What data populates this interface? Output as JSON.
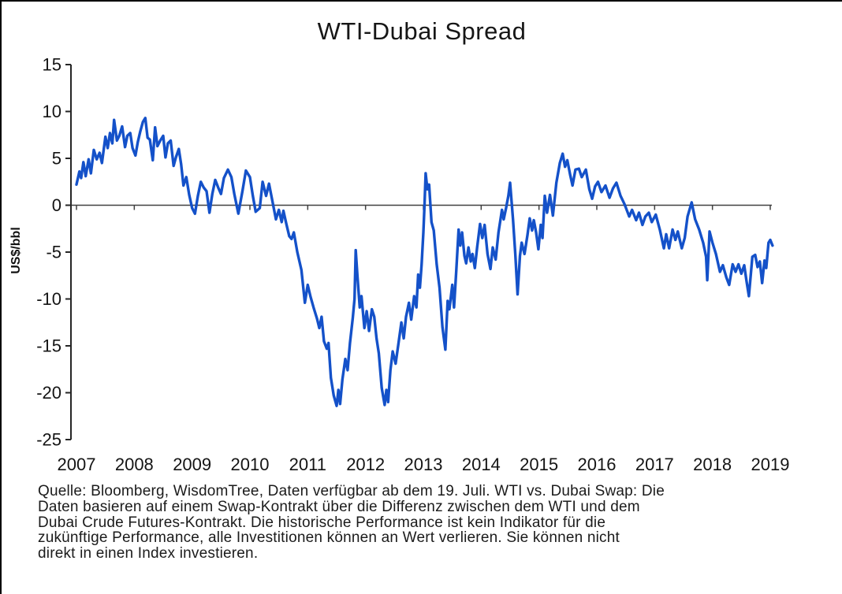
{
  "title": "WTI-Dubai Spread",
  "y_axis_label": "US$/bbl",
  "footnote_lines": [
    "Quelle: Bloomberg, WisdomTree, Daten verfügbar ab dem 19. Juli. WTI vs. Dubai Swap: Die",
    "Daten basieren auf einem Swap-Kontrakt über die Differenz zwischen dem WTI und dem",
    "Dubai Crude Futures-Kontrakt.  Die historische Performance ist kein Indikator für die",
    "zukünftige Performance, alle Investitionen können an Wert verlieren. Sie können nicht",
    "direkt in einen Index investieren."
  ],
  "chart_data": {
    "type": "line",
    "title": "WTI-Dubai Spread",
    "xlabel": "",
    "ylabel": "US$/bbl",
    "ylim": [
      -25,
      15
    ],
    "xlim": [
      2007,
      2019.1
    ],
    "grid": false,
    "legend": "none",
    "line_color": "#1451C9",
    "axis_color": "#404040",
    "y_ticks": [
      15,
      10,
      5,
      0,
      -5,
      -10,
      -15,
      -20,
      -25
    ],
    "x_ticks": [
      "2007",
      "2008",
      "2009",
      "2010",
      "2011",
      "2012",
      "2013",
      "2014",
      "2015",
      "2016",
      "2017",
      "2018",
      "2019"
    ],
    "series": [
      {
        "name": "WTI-Dubai Spread (US$/bbl)",
        "points": [
          [
            2007.0,
            2.2
          ],
          [
            2007.05,
            3.6
          ],
          [
            2007.08,
            2.9
          ],
          [
            2007.12,
            4.6
          ],
          [
            2007.16,
            3.1
          ],
          [
            2007.21,
            4.9
          ],
          [
            2007.25,
            3.4
          ],
          [
            2007.3,
            5.9
          ],
          [
            2007.35,
            4.9
          ],
          [
            2007.4,
            5.6
          ],
          [
            2007.44,
            4.5
          ],
          [
            2007.5,
            7.3
          ],
          [
            2007.54,
            6.1
          ],
          [
            2007.58,
            7.7
          ],
          [
            2007.62,
            6.6
          ],
          [
            2007.65,
            9.1
          ],
          [
            2007.7,
            6.9
          ],
          [
            2007.74,
            7.4
          ],
          [
            2007.79,
            8.4
          ],
          [
            2007.84,
            6.2
          ],
          [
            2007.88,
            7.4
          ],
          [
            2007.93,
            7.7
          ],
          [
            2007.97,
            6.1
          ],
          [
            2008.02,
            5.3
          ],
          [
            2008.06,
            6.7
          ],
          [
            2008.1,
            7.8
          ],
          [
            2008.15,
            8.9
          ],
          [
            2008.19,
            9.3
          ],
          [
            2008.23,
            7.2
          ],
          [
            2008.27,
            7.0
          ],
          [
            2008.32,
            4.8
          ],
          [
            2008.36,
            8.3
          ],
          [
            2008.4,
            6.3
          ],
          [
            2008.45,
            6.9
          ],
          [
            2008.5,
            7.4
          ],
          [
            2008.54,
            5.1
          ],
          [
            2008.58,
            6.6
          ],
          [
            2008.63,
            6.9
          ],
          [
            2008.68,
            4.2
          ],
          [
            2008.72,
            5.1
          ],
          [
            2008.77,
            6.0
          ],
          [
            2008.81,
            4.4
          ],
          [
            2008.85,
            2.1
          ],
          [
            2008.9,
            3.0
          ],
          [
            2008.95,
            1.1
          ],
          [
            2009.0,
            -0.3
          ],
          [
            2009.05,
            -0.9
          ],
          [
            2009.1,
            1.0
          ],
          [
            2009.15,
            2.5
          ],
          [
            2009.2,
            1.9
          ],
          [
            2009.25,
            1.5
          ],
          [
            2009.3,
            -0.8
          ],
          [
            2009.35,
            1.2
          ],
          [
            2009.4,
            2.7
          ],
          [
            2009.45,
            1.9
          ],
          [
            2009.5,
            1.2
          ],
          [
            2009.55,
            2.9
          ],
          [
            2009.62,
            3.8
          ],
          [
            2009.68,
            3.0
          ],
          [
            2009.73,
            1.2
          ],
          [
            2009.8,
            -0.9
          ],
          [
            2009.87,
            1.5
          ],
          [
            2009.93,
            3.7
          ],
          [
            2010.0,
            3.0
          ],
          [
            2010.05,
            1.0
          ],
          [
            2010.1,
            -0.7
          ],
          [
            2010.17,
            -0.3
          ],
          [
            2010.22,
            2.5
          ],
          [
            2010.28,
            1.0
          ],
          [
            2010.33,
            2.3
          ],
          [
            2010.4,
            0.1
          ],
          [
            2010.45,
            -1.5
          ],
          [
            2010.5,
            -0.5
          ],
          [
            2010.55,
            -1.8
          ],
          [
            2010.58,
            -0.6
          ],
          [
            2010.63,
            -2.0
          ],
          [
            2010.68,
            -3.3
          ],
          [
            2010.72,
            -3.6
          ],
          [
            2010.76,
            -2.9
          ],
          [
            2010.82,
            -5.0
          ],
          [
            2010.89,
            -6.9
          ],
          [
            2010.95,
            -10.4
          ],
          [
            2011.0,
            -8.5
          ],
          [
            2011.05,
            -9.8
          ],
          [
            2011.1,
            -10.9
          ],
          [
            2011.16,
            -12.1
          ],
          [
            2011.2,
            -13.1
          ],
          [
            2011.24,
            -11.9
          ],
          [
            2011.28,
            -14.5
          ],
          [
            2011.33,
            -15.3
          ],
          [
            2011.36,
            -14.7
          ],
          [
            2011.4,
            -18.4
          ],
          [
            2011.45,
            -20.3
          ],
          [
            2011.5,
            -21.4
          ],
          [
            2011.53,
            -19.7
          ],
          [
            2011.56,
            -21.2
          ],
          [
            2011.6,
            -18.6
          ],
          [
            2011.65,
            -16.4
          ],
          [
            2011.69,
            -17.6
          ],
          [
            2011.73,
            -14.7
          ],
          [
            2011.78,
            -12.0
          ],
          [
            2011.81,
            -10.0
          ],
          [
            2011.83,
            -4.8
          ],
          [
            2011.86,
            -7.6
          ],
          [
            2011.9,
            -10.9
          ],
          [
            2011.93,
            -9.7
          ],
          [
            2011.98,
            -13.1
          ],
          [
            2012.02,
            -11.3
          ],
          [
            2012.06,
            -13.4
          ],
          [
            2012.11,
            -11.1
          ],
          [
            2012.15,
            -11.9
          ],
          [
            2012.19,
            -14.2
          ],
          [
            2012.23,
            -15.8
          ],
          [
            2012.28,
            -19.5
          ],
          [
            2012.33,
            -21.3
          ],
          [
            2012.36,
            -19.7
          ],
          [
            2012.39,
            -21.0
          ],
          [
            2012.43,
            -17.6
          ],
          [
            2012.47,
            -15.6
          ],
          [
            2012.52,
            -16.9
          ],
          [
            2012.57,
            -14.7
          ],
          [
            2012.62,
            -12.5
          ],
          [
            2012.66,
            -14.2
          ],
          [
            2012.7,
            -11.9
          ],
          [
            2012.75,
            -10.4
          ],
          [
            2012.79,
            -12.2
          ],
          [
            2012.84,
            -9.7
          ],
          [
            2012.88,
            -10.9
          ],
          [
            2012.91,
            -7.4
          ],
          [
            2012.94,
            -8.8
          ],
          [
            2012.97,
            -6.3
          ],
          [
            2013.0,
            -2.9
          ],
          [
            2013.02,
            0.1
          ],
          [
            2013.04,
            3.4
          ],
          [
            2013.07,
            1.7
          ],
          [
            2013.1,
            2.2
          ],
          [
            2013.14,
            -1.8
          ],
          [
            2013.18,
            -2.7
          ],
          [
            2013.23,
            -6.3
          ],
          [
            2013.28,
            -8.8
          ],
          [
            2013.33,
            -13.0
          ],
          [
            2013.38,
            -15.4
          ],
          [
            2013.42,
            -10.2
          ],
          [
            2013.45,
            -11.1
          ],
          [
            2013.5,
            -8.5
          ],
          [
            2013.53,
            -10.9
          ],
          [
            2013.57,
            -6.9
          ],
          [
            2013.61,
            -2.6
          ],
          [
            2013.64,
            -4.3
          ],
          [
            2013.67,
            -2.9
          ],
          [
            2013.71,
            -5.4
          ],
          [
            2013.74,
            -6.2
          ],
          [
            2013.78,
            -4.5
          ],
          [
            2013.82,
            -6.0
          ],
          [
            2013.85,
            -5.2
          ],
          [
            2013.89,
            -6.7
          ],
          [
            2013.93,
            -4.5
          ],
          [
            2013.98,
            -2.0
          ],
          [
            2014.02,
            -3.5
          ],
          [
            2014.06,
            -2.1
          ],
          [
            2014.11,
            -5.2
          ],
          [
            2014.16,
            -6.8
          ],
          [
            2014.2,
            -4.5
          ],
          [
            2014.25,
            -5.8
          ],
          [
            2014.3,
            -2.9
          ],
          [
            2014.36,
            -0.5
          ],
          [
            2014.39,
            -1.5
          ],
          [
            2014.43,
            -0.3
          ],
          [
            2014.47,
            1.0
          ],
          [
            2014.5,
            2.4
          ],
          [
            2014.55,
            -1.5
          ],
          [
            2014.59,
            -5.2
          ],
          [
            2014.63,
            -9.5
          ],
          [
            2014.67,
            -5.4
          ],
          [
            2014.7,
            -4.0
          ],
          [
            2014.75,
            -5.2
          ],
          [
            2014.8,
            -3.2
          ],
          [
            2014.84,
            -1.4
          ],
          [
            2014.88,
            -2.7
          ],
          [
            2014.91,
            -1.6
          ],
          [
            2014.95,
            -2.9
          ],
          [
            2014.99,
            -4.7
          ],
          [
            2015.03,
            -2.1
          ],
          [
            2015.06,
            -3.5
          ],
          [
            2015.1,
            1.0
          ],
          [
            2015.14,
            -0.8
          ],
          [
            2015.19,
            1.1
          ],
          [
            2015.24,
            -1.1
          ],
          [
            2015.3,
            2.4
          ],
          [
            2015.36,
            4.5
          ],
          [
            2015.41,
            5.5
          ],
          [
            2015.45,
            4.1
          ],
          [
            2015.49,
            4.8
          ],
          [
            2015.54,
            3.2
          ],
          [
            2015.58,
            2.1
          ],
          [
            2015.63,
            3.8
          ],
          [
            2015.69,
            3.9
          ],
          [
            2015.74,
            3.0
          ],
          [
            2015.81,
            3.8
          ],
          [
            2015.87,
            1.7
          ],
          [
            2015.92,
            0.7
          ],
          [
            2015.97,
            2.0
          ],
          [
            2016.02,
            2.5
          ],
          [
            2016.08,
            1.4
          ],
          [
            2016.15,
            2.1
          ],
          [
            2016.22,
            0.8
          ],
          [
            2016.28,
            1.8
          ],
          [
            2016.34,
            2.4
          ],
          [
            2016.41,
            1.0
          ],
          [
            2016.48,
            0.1
          ],
          [
            2016.56,
            -1.2
          ],
          [
            2016.61,
            -0.5
          ],
          [
            2016.68,
            -1.6
          ],
          [
            2016.73,
            -0.8
          ],
          [
            2016.79,
            -2.1
          ],
          [
            2016.84,
            -1.2
          ],
          [
            2016.9,
            -0.8
          ],
          [
            2016.95,
            -1.8
          ],
          [
            2017.02,
            -1.0
          ],
          [
            2017.09,
            -2.6
          ],
          [
            2017.16,
            -4.6
          ],
          [
            2017.2,
            -3.1
          ],
          [
            2017.25,
            -4.6
          ],
          [
            2017.31,
            -2.6
          ],
          [
            2017.36,
            -3.7
          ],
          [
            2017.4,
            -2.8
          ],
          [
            2017.47,
            -4.6
          ],
          [
            2017.52,
            -3.5
          ],
          [
            2017.57,
            -1.2
          ],
          [
            2017.64,
            0.3
          ],
          [
            2017.7,
            -1.5
          ],
          [
            2017.77,
            -2.6
          ],
          [
            2017.84,
            -4.0
          ],
          [
            2017.89,
            -5.5
          ],
          [
            2017.91,
            -8.0
          ],
          [
            2017.95,
            -2.8
          ],
          [
            2018.0,
            -4.0
          ],
          [
            2018.06,
            -5.2
          ],
          [
            2018.13,
            -7.1
          ],
          [
            2018.18,
            -6.4
          ],
          [
            2018.24,
            -7.7
          ],
          [
            2018.29,
            -8.5
          ],
          [
            2018.35,
            -6.3
          ],
          [
            2018.4,
            -7.1
          ],
          [
            2018.45,
            -6.3
          ],
          [
            2018.5,
            -7.3
          ],
          [
            2018.55,
            -6.4
          ],
          [
            2018.59,
            -8.1
          ],
          [
            2018.63,
            -9.7
          ],
          [
            2018.69,
            -5.5
          ],
          [
            2018.74,
            -5.3
          ],
          [
            2018.78,
            -6.6
          ],
          [
            2018.82,
            -6.0
          ],
          [
            2018.86,
            -8.3
          ],
          [
            2018.9,
            -5.9
          ],
          [
            2018.93,
            -6.7
          ],
          [
            2018.97,
            -4.0
          ],
          [
            2019.0,
            -3.7
          ],
          [
            2019.04,
            -4.3
          ]
        ]
      }
    ]
  }
}
